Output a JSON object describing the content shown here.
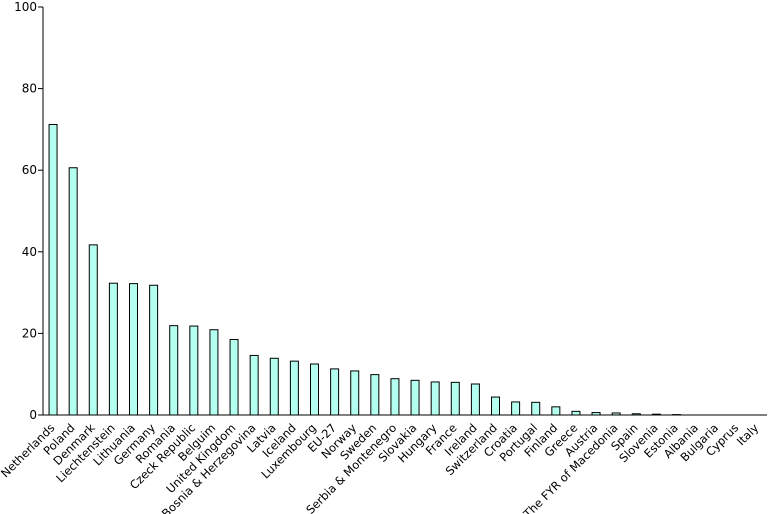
{
  "chart_data": {
    "type": "bar",
    "title": "",
    "xlabel": "",
    "ylabel": "",
    "ylim": [
      0,
      100
    ],
    "yticks": [
      0,
      20,
      40,
      60,
      80,
      100
    ],
    "grid": false,
    "bar_fill": "#b3fff0",
    "bar_stroke": "#000000",
    "categories": [
      "Netherlands",
      "Poland",
      "Denmark",
      "Liechtenstein",
      "Lithuania",
      "Germany",
      "Romania",
      "Czeck Republic",
      "Belguim",
      "United Kingdom",
      "Bosnia & Herzegovina",
      "Latvia",
      "Iceland",
      "Luxembourg",
      "EU-27",
      "Norway",
      "Sweden",
      "Serbia & Montenegro",
      "Slovakia",
      "Hungary",
      "France",
      "Ireland",
      "Switzerland",
      "Croatia",
      "Portugal",
      "Finland",
      "Greece",
      "Austria",
      "The FYR of Macedonia",
      "Spain",
      "Slovenia",
      "Estonia",
      "Albania",
      "Bulgaria",
      "Cyprus",
      "Italy"
    ],
    "values": [
      71.2,
      60.6,
      41.7,
      32.3,
      32.2,
      31.8,
      21.9,
      21.8,
      20.9,
      18.5,
      14.6,
      13.9,
      13.2,
      12.5,
      11.3,
      10.8,
      9.9,
      8.9,
      8.5,
      8.1,
      8.0,
      7.6,
      4.4,
      3.2,
      3.1,
      2.0,
      0.9,
      0.6,
      0.5,
      0.3,
      0.2,
      0.1,
      0,
      0,
      0,
      0
    ]
  }
}
